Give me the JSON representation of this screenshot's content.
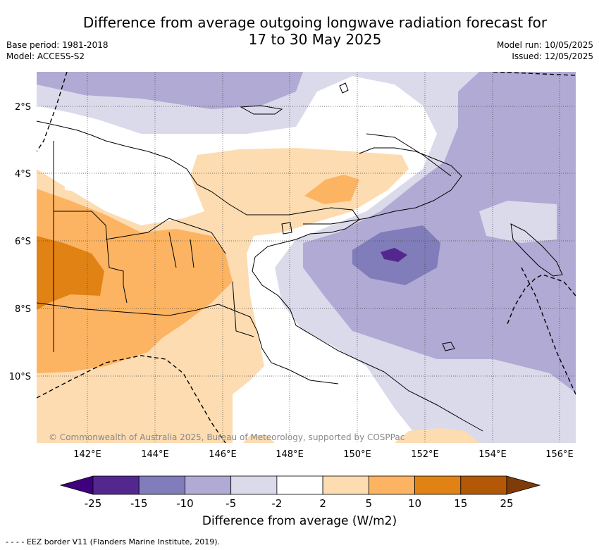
{
  "title_line1": "Difference from average outgoing longwave radiation forecast for",
  "title_line2": "17 to 30 May 2025",
  "base_period": "Base period: 1981-2018",
  "model": "Model: ACCESS-S2",
  "model_run": "Model run: 10/05/2025",
  "issued": "Issued: 12/05/2025",
  "lat_labels": [
    "2°S",
    "4°S",
    "6°S",
    "8°S",
    "10°S"
  ],
  "lon_labels": [
    "142°E",
    "144°E",
    "146°E",
    "148°E",
    "150°E",
    "152°E",
    "154°E",
    "156°E"
  ],
  "copyright": "© Commonwealth of Australia 2025, Bureau of Meteorology, supported by COSPPac",
  "colorbar": {
    "label": "Difference from average (W/m2)",
    "ticks": [
      "-25",
      "-15",
      "-10",
      "-5",
      "-2",
      "2",
      "5",
      "10",
      "15",
      "25"
    ],
    "colors": [
      "#3f007d",
      "#54278f",
      "#807dba",
      "#b0aad4",
      "#dadaeb",
      "#ffffff",
      "#fddcb1",
      "#fdb462",
      "#e08214",
      "#b35806",
      "#7f3b08"
    ]
  },
  "footnote": "- -  - - EEZ border V11 (Flanders Marine Institute, 2019)."
}
